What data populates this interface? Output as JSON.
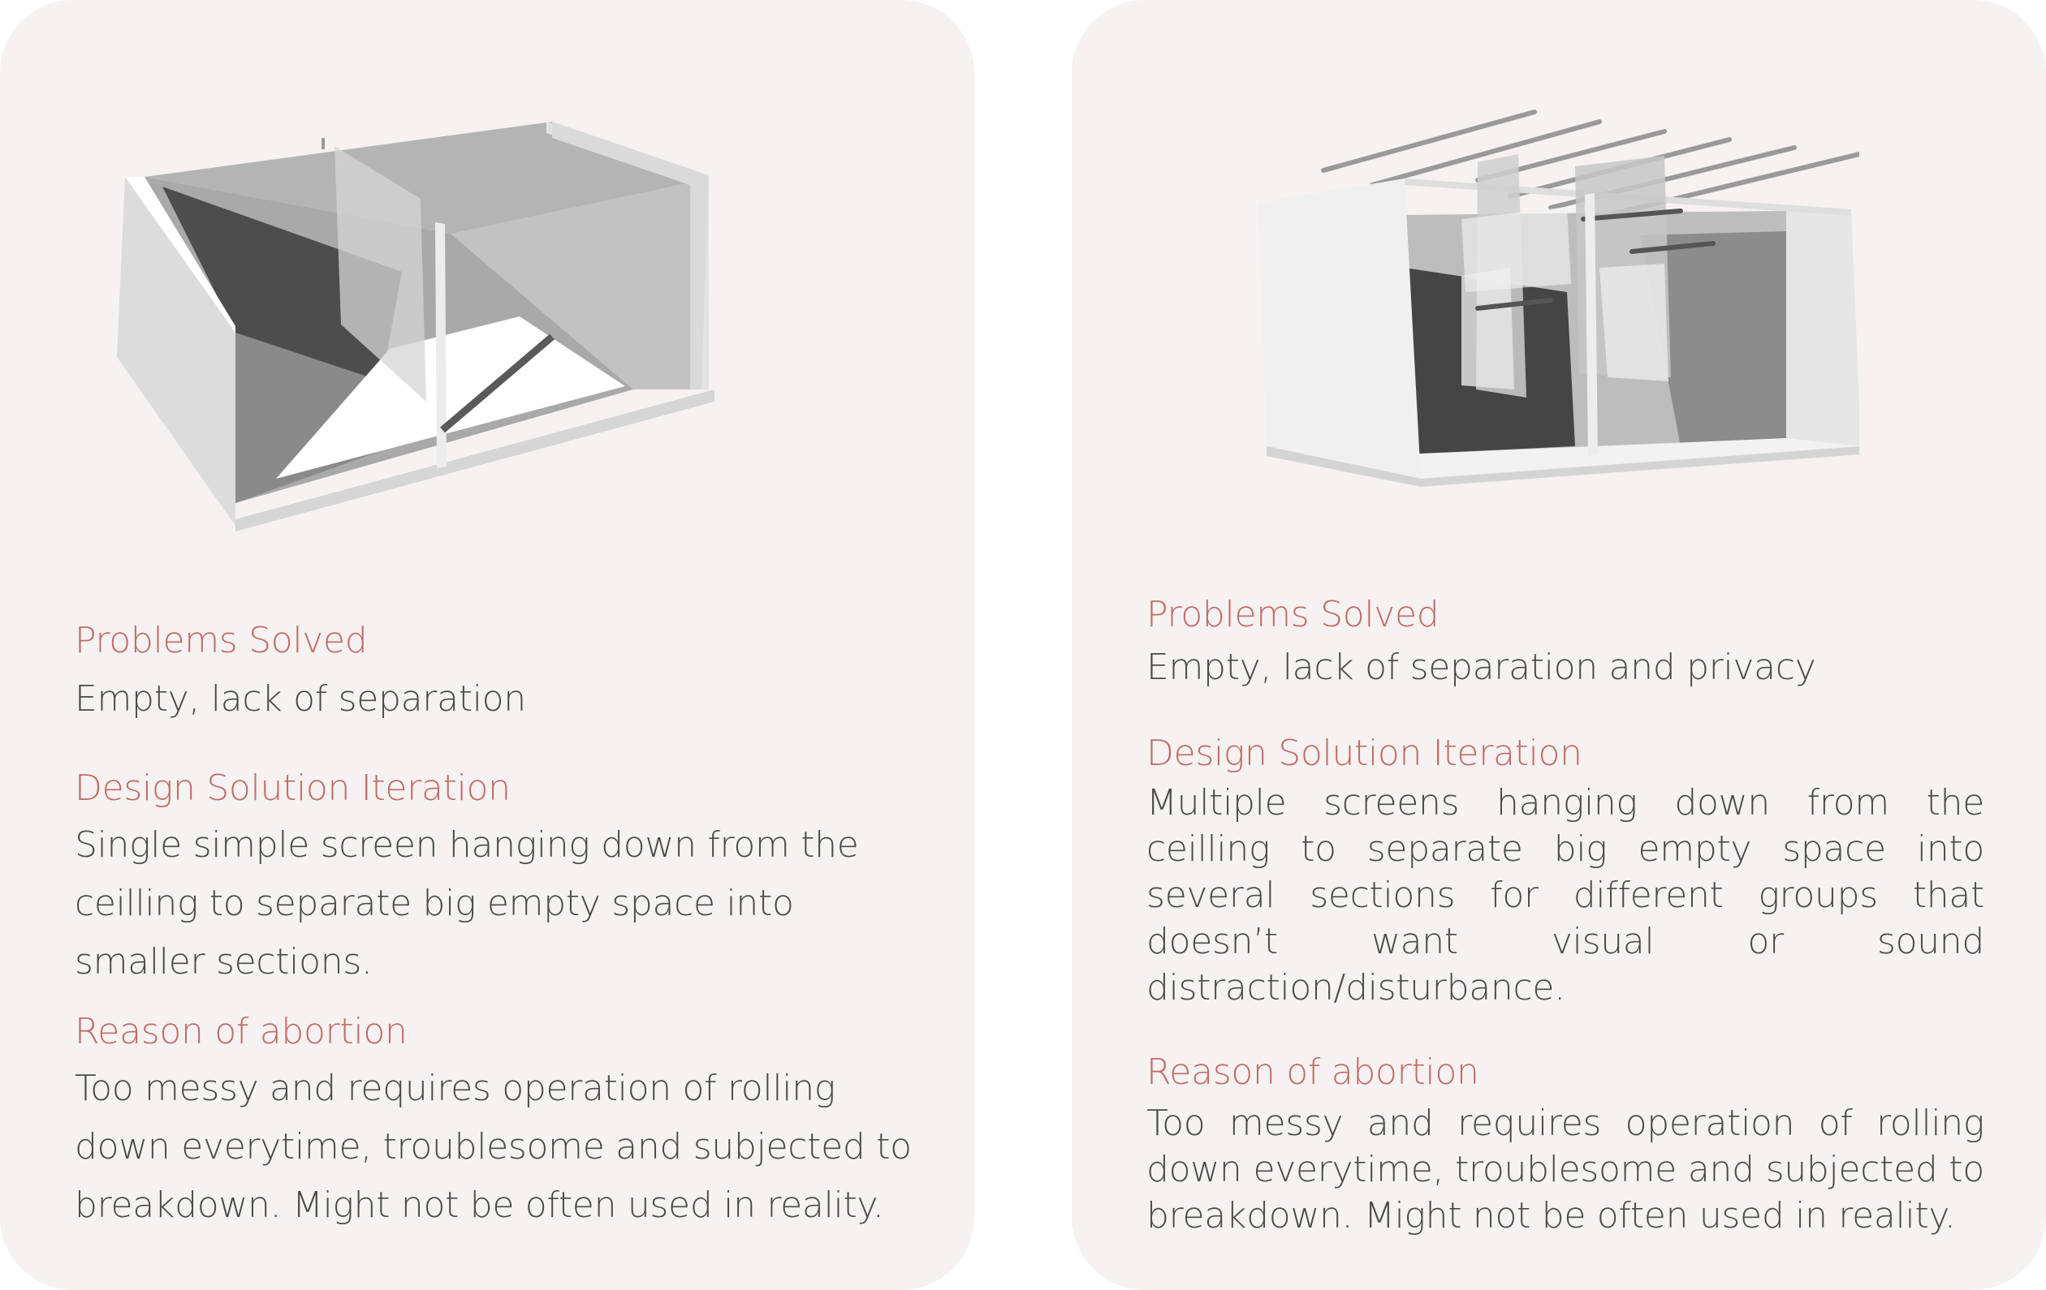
{
  "cards": [
    {
      "illustration": "room-with-single-hanging-screen",
      "problems_heading": "Problems Solved",
      "problems_text": "Empty, lack of separation",
      "design_heading": "Design Solution Iteration",
      "design_text": "Single simple screen hanging down from the ceilling to separate big empty space into smaller sections.",
      "reason_heading": "Reason of abortion",
      "reason_text": "Too messy and requires operation of rolling down everytime, troublesome and subjected to breakdown. Might not be often used in reality."
    },
    {
      "illustration": "room-with-multiple-hanging-screens",
      "problems_heading": "Problems Solved",
      "problems_text": "Empty, lack of separation and privacy",
      "design_heading": "Design Solution Iteration",
      "design_text": "Multiple screens hanging down from the ceilling to separate big empty space into several sections for different groups that doesn’t want visual or sound distraction/disturbance.",
      "reason_heading": "Reason of abortion",
      "reason_text": "Too messy and requires operation of rolling down everytime, troublesome and subjected to breakdown. Might not be often used in reality."
    }
  ],
  "colors": {
    "card_background": "#f5f2f1",
    "heading": "#c16a66",
    "body_text": "#4a4a4a"
  }
}
